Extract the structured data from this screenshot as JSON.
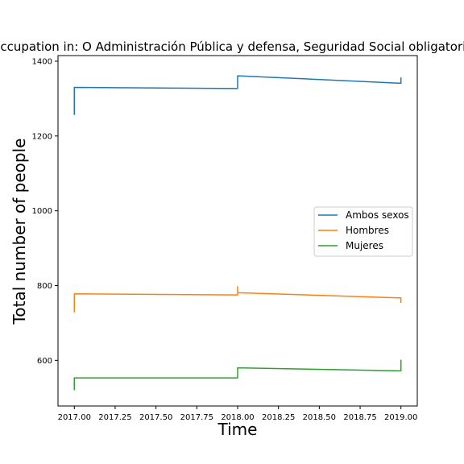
{
  "chart_data": {
    "type": "line",
    "title": "Occupation in: O Administración Pública y defensa, Seguridad Social obligatoria",
    "xlabel": "Time",
    "ylabel": "Total number of people",
    "xlim": [
      2016.9,
      2019.1
    ],
    "ylim": [
      478,
      1415
    ],
    "xticks": [
      2017.0,
      2017.25,
      2017.5,
      2017.75,
      2018.0,
      2018.25,
      2018.5,
      2018.75,
      2019.0
    ],
    "xtick_labels": [
      "2017.00",
      "2017.25",
      "2017.50",
      "2017.75",
      "2018.00",
      "2018.25",
      "2018.50",
      "2018.75",
      "2019.00"
    ],
    "yticks": [
      600,
      800,
      1000,
      1200,
      1400
    ],
    "ytick_labels": [
      "600",
      "800",
      "1000",
      "1200",
      "1400"
    ],
    "grid": false,
    "legend_position": "center-right",
    "series": [
      {
        "name": "Ambos sexos",
        "color": "#1f77b4",
        "x": [
          2017.0,
          2017.0,
          2018.0,
          2018.0,
          2019.0,
          2019.0
        ],
        "y": [
          1258,
          1330,
          1327,
          1361,
          1341,
          1355
        ]
      },
      {
        "name": "Hombres",
        "color": "#ff7f0e",
        "x": [
          2017.0,
          2017.0,
          2018.0,
          2018.0,
          2018.0,
          2019.0,
          2019.0
        ],
        "y": [
          730,
          778,
          775,
          797,
          781,
          767,
          755
        ]
      },
      {
        "name": "Mujeres",
        "color": "#2ca02c",
        "x": [
          2017.0,
          2017.0,
          2018.0,
          2018.0,
          2019.0,
          2019.0
        ],
        "y": [
          522,
          553,
          553,
          580,
          572,
          600
        ]
      }
    ]
  }
}
